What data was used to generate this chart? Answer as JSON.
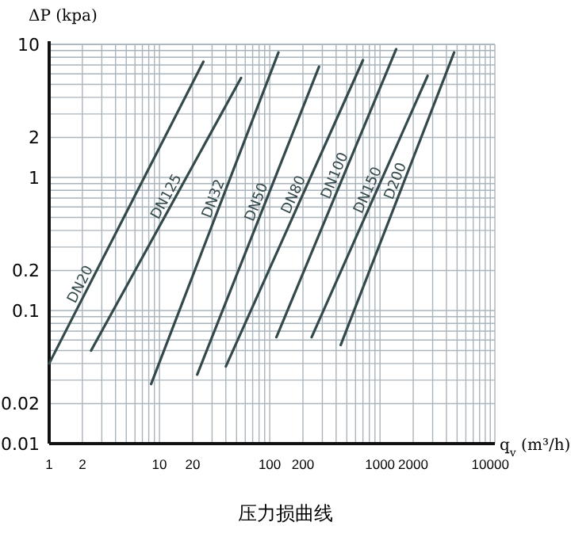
{
  "chart_data": {
    "type": "line",
    "xlabel": "q$_{v}$ (m³/h)",
    "ylabel": "ΔP (kpa)",
    "annotations": [
      "压力损曲线"
    ],
    "log": "xy",
    "grid": true,
    "xlim": [
      1,
      11000
    ],
    "ylim": [
      0.01,
      10
    ],
    "xticks": [
      1,
      2,
      10,
      20,
      100,
      200,
      1000,
      2000,
      10000
    ],
    "yticks": [
      0.01,
      0.02,
      0.1,
      0.2,
      1,
      2,
      10
    ],
    "series": [
      {
        "name": "DN20",
        "color": "#34494b",
        "x": [
          1,
          25
        ],
        "values": [
          0.04,
          7.4
        ]
      },
      {
        "name": "DN125",
        "color": "#34494b",
        "x": [
          2.4,
          55
        ],
        "values": [
          0.05,
          5.6
        ]
      },
      {
        "name": "DN32",
        "color": "#34494b",
        "x": [
          8.4,
          120
        ],
        "values": [
          0.028,
          8.7
        ]
      },
      {
        "name": "DN50",
        "color": "#34494b",
        "x": [
          22,
          280
        ],
        "values": [
          0.033,
          6.8
        ]
      },
      {
        "name": "DN80",
        "color": "#34494b",
        "x": [
          40,
          700
        ],
        "values": [
          0.038,
          7.6
        ]
      },
      {
        "name": "DN100",
        "color": "#34494b",
        "x": [
          115,
          1400
        ],
        "values": [
          0.063,
          9.2
        ]
      },
      {
        "name": "DN150",
        "color": "#34494b",
        "x": [
          240,
          2700
        ],
        "values": [
          0.063,
          5.8
        ]
      },
      {
        "name": "D200",
        "color": "#34494b",
        "x": [
          440,
          4700
        ],
        "values": [
          0.055,
          8.7
        ]
      }
    ]
  }
}
